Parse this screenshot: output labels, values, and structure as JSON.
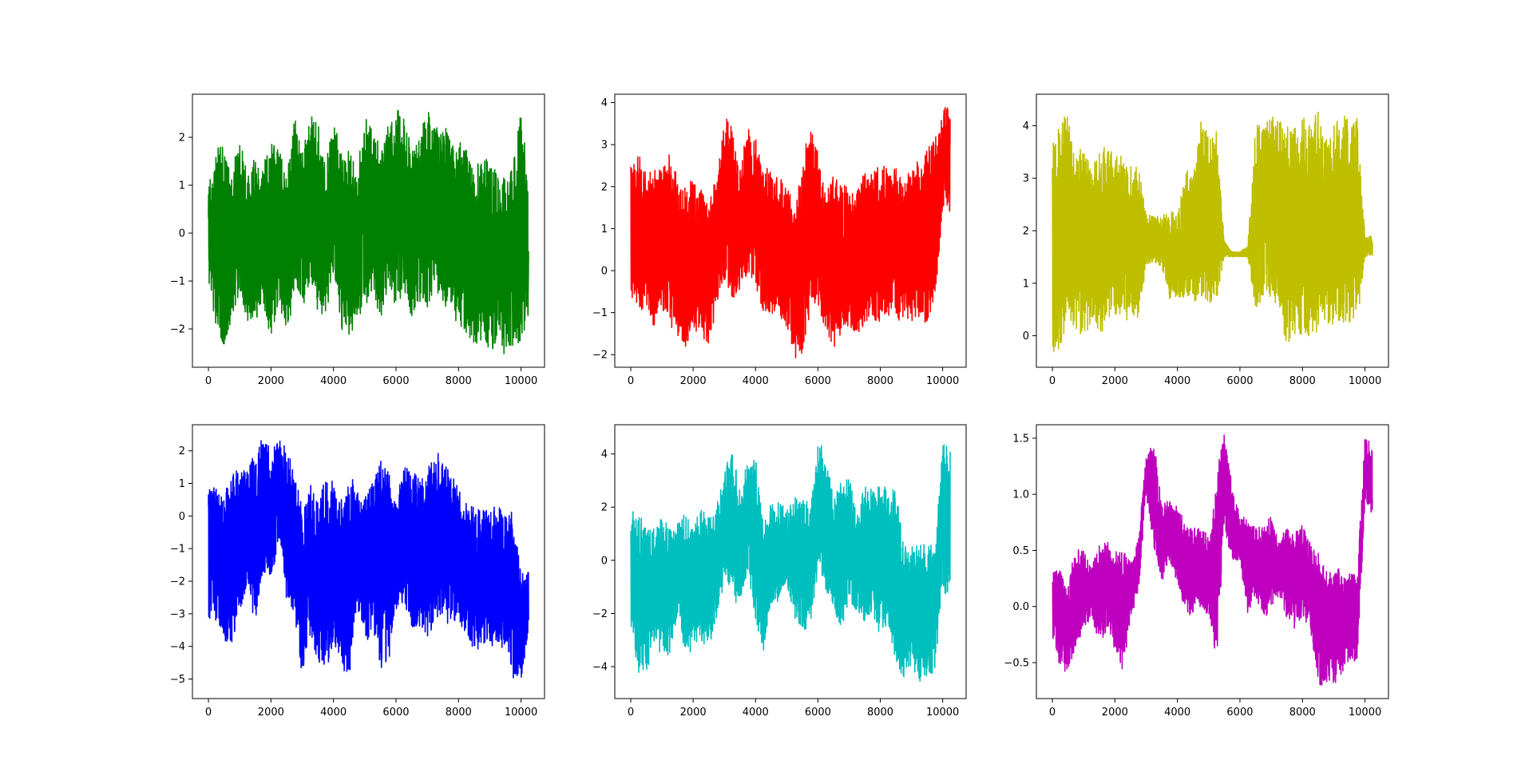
{
  "figure": {
    "layout": "2x3 grid of line plots",
    "background": "#ffffff"
  },
  "chart_data": [
    {
      "type": "line",
      "color": "#008000",
      "x_range": [
        0,
        10240
      ],
      "xlim": [
        -512,
        10752
      ],
      "ylim": [
        -2.8,
        2.9
      ],
      "xticks": [
        0,
        2000,
        4000,
        6000,
        8000,
        10000
      ],
      "xtick_labels": [
        "0",
        "2000",
        "4000",
        "6000",
        "8000",
        "10000"
      ],
      "yticks": [
        -2,
        -1,
        0,
        1,
        2
      ],
      "ytick_labels": [
        "−2",
        "−1",
        "0",
        "1",
        "2"
      ],
      "envelope": {
        "x": [
          0,
          250,
          500,
          750,
          1000,
          1250,
          1500,
          1750,
          2000,
          2250,
          2500,
          2750,
          3000,
          3250,
          3500,
          3750,
          4000,
          4250,
          4500,
          4750,
          5000,
          5250,
          5500,
          5750,
          6000,
          6250,
          6500,
          6750,
          7000,
          7250,
          7500,
          7750,
          8000,
          8250,
          8500,
          8750,
          9000,
          9250,
          9500,
          9750,
          10000,
          10240
        ],
        "max": [
          0.9,
          1.9,
          1.8,
          1.3,
          2.0,
          1.2,
          1.6,
          1.5,
          1.9,
          2.1,
          1.2,
          2.5,
          1.7,
          2.6,
          2.3,
          1.6,
          2.3,
          1.8,
          1.8,
          1.3,
          2.4,
          2.4,
          1.7,
          2.3,
          2.6,
          2.6,
          1.9,
          2.1,
          2.6,
          2.2,
          2.3,
          2.0,
          2.1,
          1.9,
          1.4,
          1.5,
          1.6,
          1.3,
          1.2,
          1.5,
          2.7,
          1.0
        ],
        "min": [
          -1.6,
          -1.9,
          -2.4,
          -1.8,
          -1.2,
          -2.0,
          -1.8,
          -1.6,
          -2.2,
          -1.5,
          -2.2,
          -1.3,
          -1.6,
          -1.1,
          -1.7,
          -1.8,
          -0.8,
          -2.0,
          -2.2,
          -1.8,
          -1.6,
          -1.2,
          -1.9,
          -1.1,
          -1.6,
          -1.2,
          -1.8,
          -1.4,
          -1.8,
          -1.2,
          -1.5,
          -1.6,
          -2.0,
          -2.1,
          -2.5,
          -2.4,
          -2.6,
          -2.2,
          -2.6,
          -2.4,
          -2.3,
          -1.7
        ]
      }
    },
    {
      "type": "line",
      "color": "#ff0000",
      "x_range": [
        0,
        10240
      ],
      "xlim": [
        -512,
        10752
      ],
      "ylim": [
        -2.3,
        4.2
      ],
      "xticks": [
        0,
        2000,
        4000,
        6000,
        8000,
        10000
      ],
      "xtick_labels": [
        "0",
        "2000",
        "4000",
        "6000",
        "8000",
        "10000"
      ],
      "yticks": [
        -2,
        -1,
        0,
        1,
        2,
        3,
        4
      ],
      "ytick_labels": [
        "−2",
        "−1",
        "0",
        "1",
        "2",
        "3",
        "4"
      ],
      "envelope": {
        "x": [
          0,
          250,
          500,
          750,
          1000,
          1250,
          1500,
          1750,
          2000,
          2250,
          2500,
          2750,
          3000,
          3250,
          3500,
          3750,
          4000,
          4250,
          4500,
          4750,
          5000,
          5250,
          5500,
          5750,
          6000,
          6250,
          6500,
          6750,
          7000,
          7250,
          7500,
          7750,
          8000,
          8250,
          8500,
          8750,
          9000,
          9250,
          9500,
          9750,
          10000,
          10240
        ],
        "max": [
          2.7,
          2.8,
          2.3,
          2.4,
          2.4,
          2.8,
          2.2,
          2.0,
          2.2,
          2.0,
          1.6,
          2.3,
          3.7,
          3.4,
          2.4,
          3.5,
          3.2,
          2.5,
          2.4,
          2.3,
          2.2,
          1.4,
          2.6,
          3.5,
          2.8,
          1.8,
          2.3,
          2.0,
          2.1,
          2.0,
          2.5,
          2.4,
          2.6,
          2.4,
          2.5,
          2.1,
          2.7,
          2.6,
          2.9,
          3.2,
          3.9,
          3.9
        ],
        "min": [
          -0.8,
          -0.9,
          -1.0,
          -1.5,
          -0.9,
          -1.3,
          -1.6,
          -1.9,
          -1.3,
          -1.7,
          -1.8,
          -0.9,
          -0.2,
          -0.8,
          -0.6,
          -0.1,
          -0.3,
          -1.1,
          -1.0,
          -1.1,
          -1.4,
          -2.1,
          -2.0,
          -1.0,
          -0.9,
          -1.4,
          -1.9,
          -1.5,
          -1.3,
          -1.6,
          -1.4,
          -1.2,
          -1.3,
          -1.1,
          -1.2,
          -1.2,
          -1.2,
          -1.2,
          -1.3,
          -0.8,
          1.4,
          1.4
        ]
      }
    },
    {
      "type": "line",
      "color": "#bfbf00",
      "x_range": [
        0,
        10240
      ],
      "xlim": [
        -512,
        10752
      ],
      "ylim": [
        -0.6,
        4.6
      ],
      "xticks": [
        0,
        2000,
        4000,
        6000,
        8000,
        10000
      ],
      "xtick_labels": [
        "0",
        "2000",
        "4000",
        "6000",
        "8000",
        "10000"
      ],
      "yticks": [
        0,
        1,
        2,
        3,
        4
      ],
      "ytick_labels": [
        "0",
        "1",
        "2",
        "3",
        "4"
      ],
      "envelope": {
        "x": [
          0,
          250,
          500,
          750,
          1000,
          1250,
          1500,
          1750,
          2000,
          2250,
          2500,
          2750,
          3000,
          3250,
          3500,
          3750,
          4000,
          4250,
          4500,
          4750,
          5000,
          5250,
          5500,
          5750,
          6000,
          6250,
          6500,
          6750,
          7000,
          7250,
          7500,
          7750,
          8000,
          8250,
          8500,
          8750,
          9000,
          9250,
          9500,
          9750,
          10000,
          10240
        ],
        "max": [
          3.6,
          4.2,
          4.2,
          3.7,
          3.6,
          3.2,
          3.6,
          3.6,
          3.5,
          3.4,
          3.3,
          3.3,
          2.3,
          2.3,
          2.3,
          2.4,
          2.3,
          3.2,
          3.0,
          4.2,
          3.9,
          3.9,
          1.8,
          1.6,
          1.6,
          1.7,
          4.0,
          4.1,
          4.2,
          4.1,
          4.2,
          4.0,
          4.2,
          4.1,
          4.4,
          3.9,
          4.2,
          4.2,
          4.2,
          4.2,
          1.9,
          1.9
        ],
        "min": [
          -0.4,
          -0.3,
          0.4,
          -0.1,
          0.1,
          0.0,
          -0.2,
          0.3,
          0.3,
          0.3,
          0.3,
          0.3,
          1.3,
          1.4,
          1.3,
          0.7,
          0.7,
          0.7,
          0.6,
          0.6,
          0.6,
          0.6,
          1.5,
          1.5,
          1.5,
          1.5,
          0.5,
          0.6,
          0.6,
          0.5,
          -0.2,
          0.0,
          -0.1,
          -0.3,
          0.1,
          0.2,
          0.2,
          0.2,
          0.2,
          0.2,
          1.5,
          1.5
        ]
      }
    },
    {
      "type": "line",
      "color": "#0000ff",
      "x_range": [
        0,
        10240
      ],
      "xlim": [
        -512,
        10752
      ],
      "ylim": [
        -5.6,
        2.8
      ],
      "xticks": [
        0,
        2000,
        4000,
        6000,
        8000,
        10000
      ],
      "xtick_labels": [
        "0",
        "2000",
        "4000",
        "6000",
        "8000",
        "10000"
      ],
      "yticks": [
        -5,
        -4,
        -3,
        -2,
        -1,
        0,
        1,
        2
      ],
      "ytick_labels": [
        "−5",
        "−4",
        "−3",
        "−2",
        "−1",
        "0",
        "1",
        "2"
      ],
      "envelope": {
        "x": [
          0,
          250,
          500,
          750,
          1000,
          1250,
          1500,
          1750,
          2000,
          2250,
          2500,
          2750,
          3000,
          3250,
          3500,
          3750,
          4000,
          4250,
          4500,
          4750,
          5000,
          5250,
          5500,
          5750,
          6000,
          6250,
          6500,
          6750,
          7000,
          7250,
          7500,
          7750,
          8000,
          8250,
          8500,
          8750,
          9000,
          9250,
          9500,
          9750,
          10000,
          10240
        ],
        "max": [
          0.9,
          0.9,
          0.8,
          1.3,
          1.5,
          1.4,
          2.0,
          2.5,
          2.0,
          2.4,
          2.2,
          1.3,
          0.4,
          1.1,
          0.4,
          1.2,
          1.1,
          0.5,
          1.5,
          0.8,
          0.6,
          1.2,
          1.7,
          1.4,
          0.5,
          1.5,
          1.4,
          1.2,
          1.6,
          2.1,
          1.8,
          1.3,
          1.0,
          0.4,
          0.3,
          0.2,
          0.2,
          0.4,
          0.2,
          0.1,
          -1.7,
          -1.7
        ],
        "min": [
          -3.3,
          -3.2,
          -3.9,
          -4.1,
          -3.0,
          -2.3,
          -3.4,
          -1.7,
          -2.1,
          -0.8,
          -2.6,
          -3.0,
          -5.0,
          -3.7,
          -4.6,
          -4.9,
          -3.9,
          -4.5,
          -5.3,
          -2.9,
          -3.7,
          -4.0,
          -4.7,
          -4.6,
          -2.9,
          -2.6,
          -3.6,
          -3.4,
          -3.8,
          -3.2,
          -3.0,
          -3.5,
          -3.2,
          -3.8,
          -4.2,
          -4.0,
          -4.0,
          -4.2,
          -4.0,
          -5.2,
          -5.2,
          -3.6
        ]
      }
    },
    {
      "type": "line",
      "color": "#00bfbf",
      "x_range": [
        0,
        10240
      ],
      "xlim": [
        -512,
        10752
      ],
      "ylim": [
        -5.2,
        5.1
      ],
      "xticks": [
        0,
        2000,
        4000,
        6000,
        8000,
        10000
      ],
      "xtick_labels": [
        "0",
        "2000",
        "4000",
        "6000",
        "8000",
        "10000"
      ],
      "yticks": [
        -4,
        -2,
        0,
        2,
        4
      ],
      "ytick_labels": [
        "−4",
        "−2",
        "0",
        "2",
        "4"
      ],
      "envelope": {
        "x": [
          0,
          250,
          500,
          750,
          1000,
          1250,
          1500,
          1750,
          2000,
          2250,
          2500,
          2750,
          3000,
          3250,
          3500,
          3750,
          4000,
          4250,
          4500,
          4750,
          5000,
          5250,
          5500,
          5750,
          6000,
          6250,
          6500,
          6750,
          7000,
          7250,
          7500,
          7750,
          8000,
          8250,
          8500,
          8750,
          9000,
          9250,
          9500,
          9750,
          10000,
          10240
        ],
        "max": [
          1.9,
          1.8,
          1.4,
          1.2,
          1.6,
          1.6,
          1.4,
          1.8,
          1.4,
          1.9,
          1.7,
          2.2,
          3.4,
          4.3,
          2.7,
          3.8,
          3.9,
          1.3,
          2.2,
          2.2,
          1.9,
          2.4,
          2.4,
          2.2,
          4.4,
          4.4,
          2.4,
          3.0,
          3.2,
          1.6,
          3.0,
          2.8,
          2.9,
          2.7,
          2.8,
          0.7,
          0.6,
          0.6,
          0.6,
          0.6,
          4.7,
          4.3
        ],
        "min": [
          -2.8,
          -4.3,
          -4.3,
          -3.1,
          -3.6,
          -3.6,
          -2.1,
          -3.5,
          -3.5,
          -3.1,
          -3.3,
          -2.3,
          -0.8,
          -1.4,
          -1.8,
          -0.5,
          -2.3,
          -3.5,
          -2.0,
          -1.7,
          -0.9,
          -2.3,
          -2.6,
          -2.6,
          -0.4,
          -1.2,
          -1.8,
          -2.6,
          -1.5,
          -1.9,
          -2.3,
          -2.1,
          -2.9,
          -2.3,
          -4.3,
          -4.4,
          -4.0,
          -4.8,
          -4.4,
          -4.2,
          -1.3,
          -1.2
        ]
      }
    },
    {
      "type": "line",
      "color": "#bf00bf",
      "x_range": [
        0,
        10240
      ],
      "xlim": [
        -512,
        10752
      ],
      "ylim": [
        -0.82,
        1.62
      ],
      "xticks": [
        0,
        2000,
        4000,
        6000,
        8000,
        10000
      ],
      "xtick_labels": [
        "0",
        "2000",
        "4000",
        "6000",
        "8000",
        "10000"
      ],
      "yticks": [
        -0.5,
        0.0,
        0.5,
        1.0,
        1.5
      ],
      "ytick_labels": [
        "−0.5",
        "0.0",
        "0.5",
        "1.0",
        "1.5"
      ],
      "envelope": {
        "x": [
          0,
          250,
          500,
          750,
          1000,
          1250,
          1500,
          1750,
          2000,
          2250,
          2500,
          2750,
          3000,
          3250,
          3500,
          3750,
          4000,
          4250,
          4500,
          4750,
          5000,
          5250,
          5500,
          5750,
          6000,
          6250,
          6500,
          6750,
          7000,
          7250,
          7500,
          7750,
          8000,
          8250,
          8500,
          8750,
          9000,
          9250,
          9500,
          9750,
          10000,
          10240
        ],
        "max": [
          0.35,
          0.38,
          0.2,
          0.55,
          0.5,
          0.35,
          0.55,
          0.6,
          0.55,
          0.5,
          0.4,
          0.6,
          1.35,
          1.5,
          0.95,
          0.95,
          0.9,
          0.75,
          0.7,
          0.7,
          0.65,
          1.2,
          1.55,
          1.1,
          0.8,
          0.8,
          0.7,
          0.75,
          0.8,
          0.6,
          0.7,
          0.65,
          0.75,
          0.6,
          0.5,
          0.35,
          0.4,
          0.3,
          0.3,
          0.3,
          1.52,
          1.45
        ],
        "min": [
          -0.3,
          -0.55,
          -0.6,
          -0.4,
          -0.2,
          -0.1,
          -0.35,
          -0.2,
          -0.4,
          -0.6,
          -0.1,
          0.1,
          1.0,
          0.5,
          0.2,
          0.4,
          0.2,
          -0.05,
          -0.1,
          0.0,
          -0.1,
          -0.5,
          0.7,
          0.4,
          0.4,
          -0.1,
          0.1,
          -0.15,
          0.0,
          0.1,
          -0.1,
          -0.2,
          -0.1,
          -0.2,
          -0.7,
          -0.7,
          -0.7,
          -0.6,
          -0.5,
          -0.5,
          0.9,
          0.8
        ]
      }
    }
  ]
}
